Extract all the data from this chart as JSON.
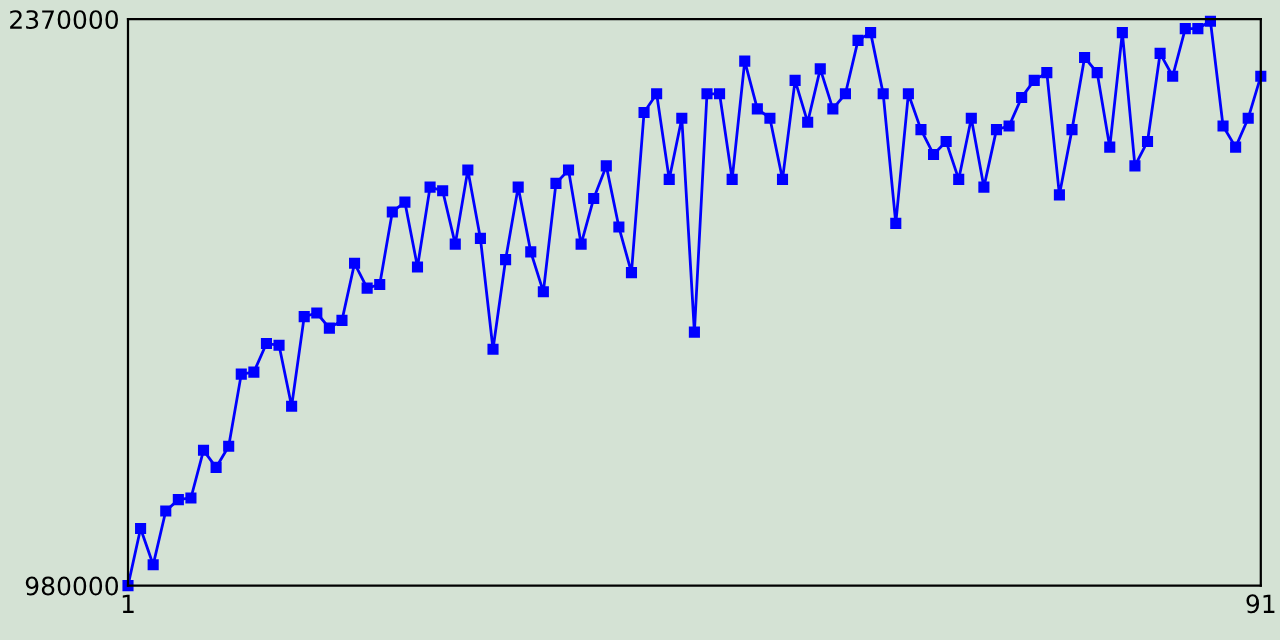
{
  "chart_data": {
    "type": "line",
    "x": [
      1,
      2,
      3,
      4,
      5,
      6,
      7,
      8,
      9,
      10,
      11,
      12,
      13,
      14,
      15,
      16,
      17,
      18,
      19,
      20,
      21,
      22,
      23,
      24,
      25,
      26,
      27,
      28,
      29,
      30,
      31,
      32,
      33,
      34,
      35,
      36,
      37,
      38,
      39,
      40,
      41,
      42,
      43,
      44,
      45,
      46,
      47,
      48,
      49,
      50,
      51,
      52,
      53,
      54,
      55,
      56,
      57,
      58,
      59,
      60,
      61,
      62,
      63,
      64,
      65,
      66,
      67,
      68,
      69,
      70,
      71,
      72,
      73,
      74,
      75,
      76,
      77,
      78,
      79,
      80,
      81,
      82,
      83,
      84,
      85,
      86,
      87,
      88,
      89,
      90,
      91
    ],
    "series": [
      {
        "color": "#0000ff",
        "values": [
          980000,
          1120000,
          1031000,
          1163000,
          1191000,
          1195000,
          1312000,
          1270000,
          1322000,
          1499000,
          1504000,
          1574000,
          1570000,
          1420000,
          1640000,
          1649000,
          1612000,
          1631000,
          1771000,
          1710000,
          1719000,
          1897000,
          1921000,
          1762000,
          1958000,
          1949000,
          1818000,
          2000000,
          1832000,
          1560000,
          1780000,
          1958000,
          1799000,
          1701000,
          1967000,
          2000000,
          1818000,
          1930000,
          2010000,
          1860000,
          1748000,
          2141000,
          2187000,
          1977000,
          2127000,
          1602000,
          2187000,
          2187000,
          1977000,
          2267000,
          2150000,
          2127000,
          1977000,
          2220000,
          2117000,
          2248000,
          2150000,
          2187000,
          2318000,
          2337000,
          2187000,
          1869000,
          2187000,
          2099000,
          2038000,
          2070000,
          1977000,
          2127000,
          1958000,
          2099000,
          2108000,
          2178000,
          2220000,
          2239000,
          1939000,
          2099000,
          2276000,
          2239000,
          2056000,
          2337000,
          2010000,
          2070000,
          2286000,
          2230000,
          2347000,
          2347000,
          2365000,
          2108000,
          2056000,
          2127000,
          2230000
        ]
      }
    ],
    "xlim": [
      1,
      91
    ],
    "xticks": [
      1,
      91
    ],
    "ylim": [
      980000,
      2370000
    ],
    "yticks": [
      980000,
      2370000
    ],
    "marker": "square",
    "line_style": "solid",
    "grid": false,
    "legend": false
  }
}
